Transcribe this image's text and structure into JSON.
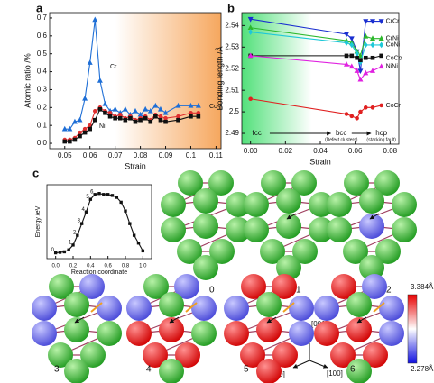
{
  "panel_labels": [
    "a",
    "b",
    "c"
  ],
  "chart_data": [
    {
      "type": "line",
      "xlabel": "Strain",
      "ylabel": "Atomic ratio /%",
      "x": [
        0.05,
        0.052,
        0.054,
        0.056,
        0.058,
        0.06,
        0.062,
        0.064,
        0.066,
        0.068,
        0.07,
        0.072,
        0.074,
        0.076,
        0.078,
        0.08,
        0.082,
        0.084,
        0.086,
        0.088,
        0.09,
        0.095,
        0.1,
        0.103
      ],
      "xlim": [
        0.044,
        0.112
      ],
      "xticks": [
        0.05,
        0.06,
        0.07,
        0.08,
        0.09,
        0.1,
        0.11
      ],
      "ylim": [
        -0.03,
        0.73
      ],
      "yticks": [
        {
          "value": 0,
          "label": "0.0"
        },
        0.1,
        0.2,
        0.3,
        0.4,
        0.5,
        0.6,
        0.7
      ],
      "series": [
        {
          "name": "Cr",
          "color": "#1f6fd6",
          "marker": "triangle",
          "values": [
            0.08,
            0.08,
            0.12,
            0.13,
            0.25,
            0.45,
            0.69,
            0.35,
            0.22,
            0.18,
            0.19,
            0.17,
            0.19,
            0.16,
            0.18,
            0.16,
            0.19,
            0.18,
            0.21,
            0.19,
            0.17,
            0.21,
            0.21,
            0.21
          ]
        },
        {
          "name": "Co",
          "color": "#e03030",
          "marker": "circle",
          "values": [
            0.02,
            0.02,
            0.03,
            0.06,
            0.08,
            0.1,
            0.18,
            0.2,
            0.18,
            0.17,
            0.15,
            0.16,
            0.14,
            0.15,
            0.13,
            0.14,
            0.15,
            0.13,
            0.16,
            0.15,
            0.14,
            0.15,
            0.17,
            0.17
          ]
        },
        {
          "name": "Ni",
          "color": "#111111",
          "marker": "square",
          "values": [
            0.01,
            0.01,
            0.02,
            0.04,
            0.06,
            0.08,
            0.13,
            0.19,
            0.17,
            0.15,
            0.14,
            0.14,
            0.13,
            0.14,
            0.12,
            0.13,
            0.14,
            0.12,
            0.15,
            0.13,
            0.12,
            0.13,
            0.15,
            0.15
          ]
        }
      ]
    },
    {
      "type": "line",
      "xlabel": "Strain",
      "ylabel": "Bonding length /Å",
      "x": [
        0,
        0.055,
        0.058,
        0.061,
        0.063,
        0.066,
        0.07,
        0.075
      ],
      "xlim": [
        -0.005,
        0.085
      ],
      "xticks": [
        {
          "value": 0,
          "label": "0.00"
        },
        0.02,
        0.04,
        0.06,
        0.08
      ],
      "ylim": [
        2.485,
        2.546
      ],
      "yticks": [
        2.49,
        2.5,
        2.51,
        2.52,
        2.53,
        2.54
      ],
      "annotations": [
        "fcc",
        "bcc",
        "(Defect clusters)",
        "hcp",
        "(stacking fault)"
      ],
      "series": [
        {
          "name": "CrCr",
          "color": "#1a2fd0",
          "marker": "tridown",
          "values": [
            2.543,
            2.536,
            2.534,
            2.528,
            2.519,
            2.542,
            2.542,
            2.542
          ]
        },
        {
          "name": "CrNi",
          "color": "#2db82d",
          "marker": "triangle",
          "values": [
            2.539,
            2.533,
            2.532,
            2.528,
            2.526,
            2.535,
            2.534,
            2.534
          ]
        },
        {
          "name": "CoNi",
          "color": "#1ec8d8",
          "marker": "diamond",
          "values": [
            2.537,
            2.532,
            2.531,
            2.527,
            2.523,
            2.531,
            2.531,
            2.531
          ]
        },
        {
          "name": "CoCo",
          "color": "#111111",
          "marker": "square",
          "values": [
            2.526,
            2.526,
            2.526,
            2.525,
            2.524,
            2.525,
            2.525,
            2.526
          ]
        },
        {
          "name": "NiNi",
          "color": "#e020e0",
          "marker": "triangle",
          "values": [
            2.526,
            2.522,
            2.521,
            2.519,
            2.515,
            2.518,
            2.519,
            2.521
          ]
        },
        {
          "name": "CoCr",
          "color": "#e02020",
          "marker": "circle",
          "values": [
            2.506,
            2.499,
            2.498,
            2.497,
            2.5,
            2.502,
            2.502,
            2.503
          ]
        }
      ]
    },
    {
      "type": "line",
      "xlabel": "Reaction coordinate",
      "ylabel": "Energy /eV",
      "x": [
        0,
        0.05,
        0.1,
        0.15,
        0.2,
        0.25,
        0.3,
        0.35,
        0.4,
        0.45,
        0.5,
        0.55,
        0.6,
        0.65,
        0.7,
        0.75,
        0.8,
        0.85,
        0.9,
        0.95,
        1.0
      ],
      "xlim": [
        -0.1,
        1.1
      ],
      "xticks": [
        {
          "value": 0,
          "label": "0.0"
        },
        0.2,
        0.4,
        0.6,
        0.8,
        {
          "value": 1,
          "label": "1.0"
        }
      ],
      "ylim": [
        -0.6,
        7
      ],
      "point_labels": [
        "0",
        null,
        null,
        null,
        "1",
        "2",
        "3",
        "4",
        "5",
        "6",
        null,
        null,
        null,
        null,
        null,
        null,
        null,
        null,
        null,
        null,
        null
      ],
      "series": [
        {
          "name": "Energy",
          "color": "#111111",
          "marker": "square",
          "values": [
            0,
            0.05,
            0.1,
            0.3,
            0.8,
            1.8,
            3,
            4.2,
            5.5,
            6,
            6.1,
            6,
            6,
            5.9,
            5.7,
            5.2,
            4.3,
            3,
            1.8,
            1,
            0.2
          ]
        }
      ]
    }
  ],
  "structures": {
    "labels": [
      "0",
      "1",
      "2",
      "3",
      "4",
      "5",
      "6"
    ],
    "colorbar": {
      "max_label": "3.384Å",
      "min_label": "2.278Å"
    },
    "axes": [
      "[001]",
      "[010]",
      "[100]"
    ]
  }
}
